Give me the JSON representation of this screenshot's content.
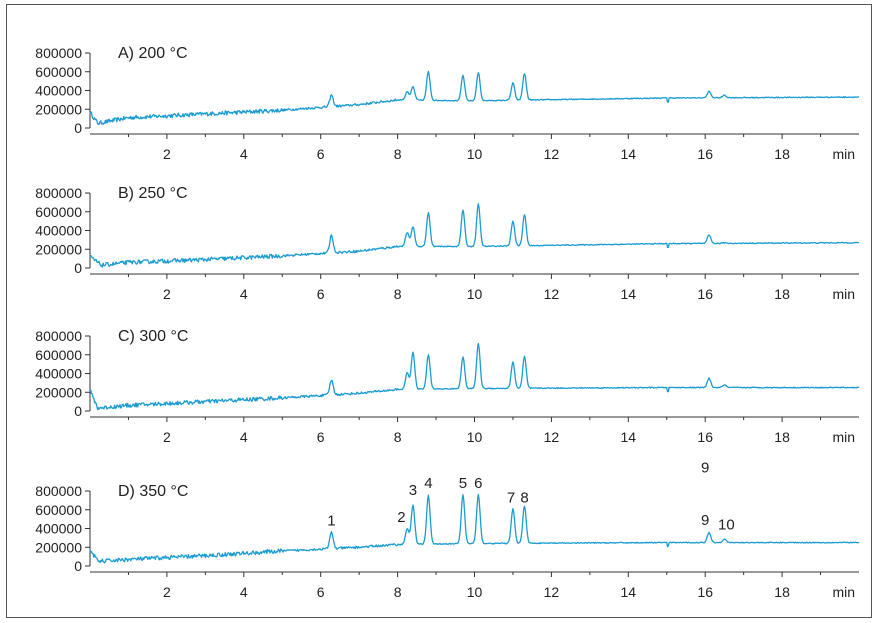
{
  "chart_data": [
    {
      "type": "line",
      "title": "A) 200 °C",
      "xlabel": "min",
      "ylabel": "",
      "xlim": [
        0,
        20
      ],
      "ylim": [
        0,
        850000
      ],
      "x_ticks": [
        2,
        4,
        6,
        8,
        10,
        12,
        14,
        16,
        18
      ],
      "y_ticks": [
        0,
        200000,
        400000,
        600000,
        800000
      ],
      "series": [
        {
          "baseline": [
            [
              0,
              170000
            ],
            [
              0.2,
              50000
            ],
            [
              1,
              110000
            ],
            [
              3,
              150000
            ],
            [
              5,
              190000
            ],
            [
              7,
              250000
            ],
            [
              8,
              300000
            ],
            [
              10,
              290000
            ],
            [
              15,
              320000
            ],
            [
              20,
              330000
            ]
          ],
          "peaks": [
            [
              6.28,
              350000
            ],
            [
              8.25,
              390000
            ],
            [
              8.4,
              440000
            ],
            [
              8.8,
              600000
            ],
            [
              9.7,
              560000
            ],
            [
              10.1,
              590000
            ],
            [
              11.0,
              480000
            ],
            [
              11.3,
              580000
            ],
            [
              16.1,
              390000
            ],
            [
              16.5,
              350000
            ]
          ]
        }
      ],
      "peak_labels": []
    },
    {
      "type": "line",
      "title": "B) 250 °C",
      "xlabel": "min",
      "ylabel": "",
      "xlim": [
        0,
        20
      ],
      "ylim": [
        0,
        850000
      ],
      "x_ticks": [
        2,
        4,
        6,
        8,
        10,
        12,
        14,
        16,
        18
      ],
      "y_ticks": [
        0,
        200000,
        400000,
        600000,
        800000
      ],
      "series": [
        {
          "baseline": [
            [
              0,
              120000
            ],
            [
              0.3,
              30000
            ],
            [
              1,
              60000
            ],
            [
              3,
              90000
            ],
            [
              5,
              130000
            ],
            [
              7,
              180000
            ],
            [
              8,
              230000
            ],
            [
              10,
              230000
            ],
            [
              15,
              260000
            ],
            [
              20,
              270000
            ]
          ],
          "peaks": [
            [
              6.28,
              350000
            ],
            [
              8.25,
              380000
            ],
            [
              8.4,
              440000
            ],
            [
              8.8,
              590000
            ],
            [
              9.7,
              620000
            ],
            [
              10.1,
              680000
            ],
            [
              11.0,
              500000
            ],
            [
              11.3,
              570000
            ],
            [
              16.1,
              350000
            ],
            [
              16.5,
              270000
            ]
          ]
        }
      ],
      "peak_labels": []
    },
    {
      "type": "line",
      "title": "C) 300 °C",
      "xlabel": "min",
      "ylabel": "",
      "xlim": [
        0,
        20
      ],
      "ylim": [
        0,
        850000
      ],
      "x_ticks": [
        2,
        4,
        6,
        8,
        10,
        12,
        14,
        16,
        18
      ],
      "y_ticks": [
        0,
        200000,
        400000,
        600000,
        800000
      ],
      "series": [
        {
          "baseline": [
            [
              0,
              220000
            ],
            [
              0.2,
              30000
            ],
            [
              1,
              60000
            ],
            [
              3,
              100000
            ],
            [
              5,
              140000
            ],
            [
              7,
              190000
            ],
            [
              8,
              230000
            ],
            [
              10,
              240000
            ],
            [
              15,
              250000
            ],
            [
              20,
              250000
            ]
          ],
          "peaks": [
            [
              6.28,
              330000
            ],
            [
              8.25,
              410000
            ],
            [
              8.4,
              630000
            ],
            [
              8.8,
              600000
            ],
            [
              9.7,
              580000
            ],
            [
              10.1,
              720000
            ],
            [
              11.0,
              520000
            ],
            [
              11.3,
              580000
            ],
            [
              16.1,
              350000
            ],
            [
              16.5,
              280000
            ]
          ]
        }
      ],
      "peak_labels": []
    },
    {
      "type": "line",
      "title": "D) 350 °C",
      "xlabel": "min",
      "ylabel": "",
      "xlim": [
        0,
        20
      ],
      "ylim": [
        0,
        850000
      ],
      "x_ticks": [
        2,
        4,
        6,
        8,
        10,
        12,
        14,
        16,
        18
      ],
      "y_ticks": [
        0,
        200000,
        400000,
        600000,
        800000
      ],
      "series": [
        {
          "baseline": [
            [
              0,
              180000
            ],
            [
              0.2,
              50000
            ],
            [
              1,
              70000
            ],
            [
              3,
              110000
            ],
            [
              5,
              160000
            ],
            [
              7,
              200000
            ],
            [
              8,
              230000
            ],
            [
              10,
              240000
            ],
            [
              15,
              250000
            ],
            [
              20,
              250000
            ]
          ],
          "peaks": [
            [
              6.28,
              360000
            ],
            [
              8.25,
              400000
            ],
            [
              8.4,
              650000
            ],
            [
              8.8,
              750000
            ],
            [
              9.7,
              760000
            ],
            [
              10.1,
              760000
            ],
            [
              11.0,
              610000
            ],
            [
              11.3,
              640000
            ],
            [
              16.1,
              360000
            ],
            [
              16.5,
              290000
            ]
          ]
        }
      ],
      "peak_labels": [
        {
          "text": "1",
          "x": 6.28,
          "y": 430000
        },
        {
          "text": "2",
          "x": 8.1,
          "y": 470000
        },
        {
          "text": "3",
          "x": 8.4,
          "y": 760000
        },
        {
          "text": "4",
          "x": 8.8,
          "y": 830000
        },
        {
          "text": "5",
          "x": 9.7,
          "y": 830000
        },
        {
          "text": "6",
          "x": 10.1,
          "y": 830000
        },
        {
          "text": "7",
          "x": 10.95,
          "y": 680000
        },
        {
          "text": "8",
          "x": 11.3,
          "y": 680000
        },
        {
          "text": "9",
          "x": 16.0,
          "y": 1000000
        },
        {
          "text": "9",
          "x": 16.0,
          "y": 440000
        },
        {
          "text": "10",
          "x": 16.55,
          "y": 390000
        }
      ]
    }
  ],
  "colors": {
    "trace": "#1a9bd1",
    "axis": "#333333",
    "text": "#222222"
  }
}
